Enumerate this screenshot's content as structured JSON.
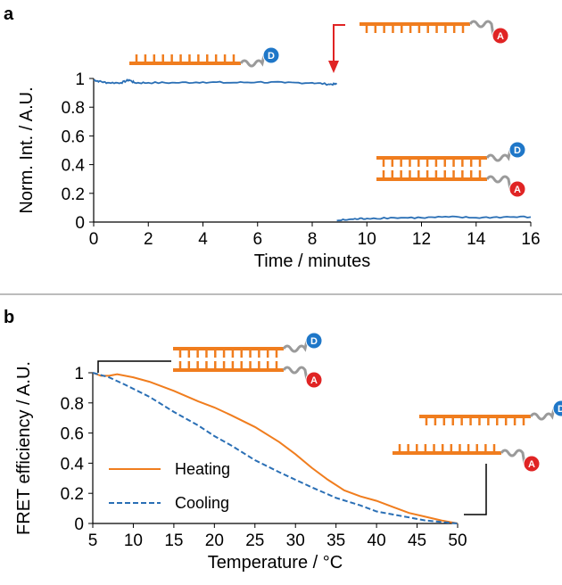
{
  "panels": [
    {
      "letter": "a"
    },
    {
      "letter": "b"
    }
  ],
  "dyes": {
    "donor": {
      "letter": "D",
      "color": "#1f77c8"
    },
    "acceptor": {
      "letter": "A",
      "color": "#e02424"
    }
  },
  "colors": {
    "strand": "#f07d1e",
    "linker": "#9a9a9a",
    "arrow": "#e02424",
    "trace_a": "#2a6fb5",
    "heating": "#f07d1e",
    "cooling": "#2a6fb5",
    "separator": "#a6a6a6"
  },
  "chart_data": [
    {
      "panel": "a",
      "type": "line",
      "xlabel": "Time / minutes",
      "ylabel": "Norm. Int. / A.U.",
      "xlim": [
        0,
        16
      ],
      "ylim": [
        0,
        1
      ],
      "xticks": [
        0,
        2,
        4,
        6,
        8,
        10,
        12,
        14,
        16
      ],
      "yticks": [
        0,
        0.2,
        0.4,
        0.6,
        0.8,
        1
      ],
      "ytick_labels": [
        "0",
        "0.2",
        "0.4",
        "0.6",
        "0.8",
        "1"
      ],
      "grid": false,
      "annotation": "arrow at acceptor-strand addition",
      "series": [
        {
          "x": [
            0,
            0.2,
            0.5,
            1,
            1.3,
            1.5,
            2,
            3,
            4,
            5,
            6,
            7,
            8,
            8.6,
            8.9,
            8.9,
            9.5,
            10,
            11,
            12,
            13,
            14,
            15,
            16
          ],
          "y": [
            0.99,
            0.98,
            0.97,
            0.97,
            0.99,
            0.97,
            0.97,
            0.97,
            0.975,
            0.97,
            0.975,
            0.97,
            0.97,
            0.96,
            0.96,
            0.01,
            0.02,
            0.025,
            0.03,
            0.03,
            0.035,
            0.03,
            0.035,
            0.035
          ]
        }
      ]
    },
    {
      "panel": "b",
      "type": "line",
      "xlabel": "Temperature / °C",
      "ylabel": "FRET efficiency / A.U.",
      "xlim": [
        5,
        50
      ],
      "ylim": [
        0,
        1
      ],
      "xticks": [
        5,
        10,
        15,
        20,
        25,
        30,
        35,
        40,
        45,
        50
      ],
      "yticks": [
        0,
        0.2,
        0.4,
        0.6,
        0.8,
        1
      ],
      "ytick_labels": [
        "0",
        "0.2",
        "0.4",
        "0.6",
        "0.8",
        "1"
      ],
      "grid": false,
      "legend_position": "bottom-left",
      "series": [
        {
          "name": "Heating",
          "style": "solid",
          "x": [
            5,
            6,
            7,
            8,
            10,
            12,
            15,
            18,
            20,
            22,
            25,
            28,
            30,
            32,
            34,
            36,
            38,
            40,
            42,
            44,
            46,
            48,
            50
          ],
          "y": [
            1,
            0.98,
            0.98,
            0.99,
            0.97,
            0.94,
            0.88,
            0.81,
            0.77,
            0.72,
            0.64,
            0.54,
            0.46,
            0.37,
            0.29,
            0.22,
            0.18,
            0.15,
            0.11,
            0.07,
            0.045,
            0.02,
            0.0
          ]
        },
        {
          "name": "Cooling",
          "style": "dashed",
          "x": [
            5,
            7,
            9,
            12,
            15,
            18,
            20,
            22,
            25,
            28,
            30,
            32,
            35,
            38,
            40,
            42,
            44,
            46,
            48,
            50
          ],
          "y": [
            1,
            0.97,
            0.92,
            0.84,
            0.74,
            0.65,
            0.58,
            0.52,
            0.42,
            0.34,
            0.29,
            0.24,
            0.17,
            0.12,
            0.08,
            0.06,
            0.04,
            0.02,
            0.01,
            0.0
          ]
        }
      ]
    }
  ]
}
